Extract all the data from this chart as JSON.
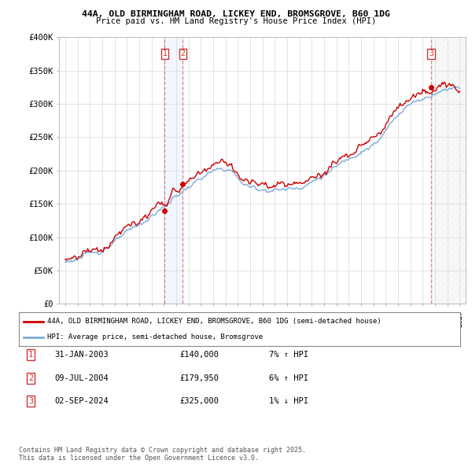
{
  "title1": "44A, OLD BIRMINGHAM ROAD, LICKEY END, BROMSGROVE, B60 1DG",
  "title2": "Price paid vs. HM Land Registry's House Price Index (HPI)",
  "legend_line1": "44A, OLD BIRMINGHAM ROAD, LICKEY END, BROMSGROVE, B60 1DG (semi-detached house)",
  "legend_line2": "HPI: Average price, semi-detached house, Bromsgrove",
  "transactions": [
    {
      "num": 1,
      "date": "31-JAN-2003",
      "price": "£140,000",
      "hpi": "7% ↑ HPI",
      "year": 2003.08
    },
    {
      "num": 2,
      "date": "09-JUL-2004",
      "price": "£179,950",
      "hpi": "6% ↑ HPI",
      "year": 2004.53
    },
    {
      "num": 3,
      "date": "02-SEP-2024",
      "price": "£325,000",
      "hpi": "1% ↓ HPI",
      "year": 2024.67
    }
  ],
  "sale_prices": [
    140000,
    179950,
    325000
  ],
  "sale_years": [
    2003.08,
    2004.53,
    2024.67
  ],
  "red_color": "#cc0000",
  "blue_color": "#7aaadd",
  "marker_box_color": "#cc3333",
  "footer": "Contains HM Land Registry data © Crown copyright and database right 2025.\nThis data is licensed under the Open Government Licence v3.0.",
  "ylim": [
    0,
    400000
  ],
  "xlim": [
    1994.5,
    2027.5
  ],
  "yticks": [
    0,
    50000,
    100000,
    150000,
    200000,
    250000,
    300000,
    350000,
    400000
  ],
  "ytick_labels": [
    "£0",
    "£50K",
    "£100K",
    "£150K",
    "£200K",
    "£250K",
    "£300K",
    "£350K",
    "£400K"
  ],
  "xticks": [
    1995,
    1996,
    1997,
    1998,
    1999,
    2000,
    2001,
    2002,
    2003,
    2004,
    2005,
    2006,
    2007,
    2008,
    2009,
    2010,
    2011,
    2012,
    2013,
    2014,
    2015,
    2016,
    2017,
    2018,
    2019,
    2020,
    2021,
    2022,
    2023,
    2024,
    2025,
    2026,
    2027
  ]
}
